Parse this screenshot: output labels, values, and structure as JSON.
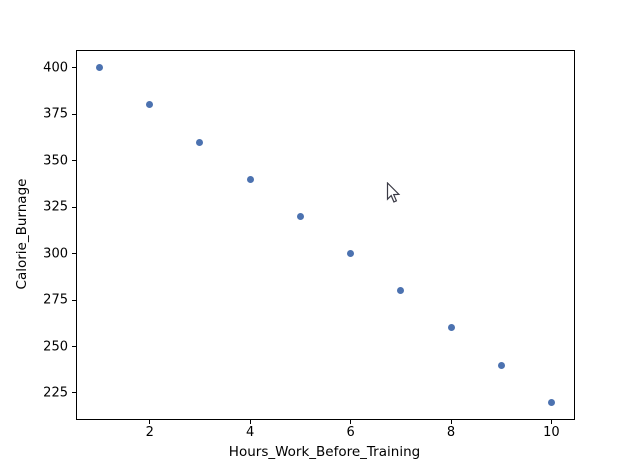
{
  "chart_data": {
    "type": "scatter",
    "title": "",
    "xlabel": "Hours_Work_Before_Training",
    "ylabel": "Calorie_Burnage",
    "x": [
      1,
      2,
      3,
      4,
      5,
      6,
      7,
      8,
      9,
      10
    ],
    "y": [
      400,
      380,
      360,
      340,
      320,
      300,
      280,
      260,
      240,
      220
    ],
    "x_ticks": [
      2,
      4,
      6,
      8,
      10
    ],
    "y_ticks": [
      225,
      250,
      275,
      300,
      325,
      350,
      375,
      400
    ],
    "xlim": [
      0.55,
      10.45
    ],
    "ylim": [
      211,
      409
    ],
    "grid": false,
    "legend_position": "none",
    "marker_color": "#4C72B0",
    "marker_diameter_px": 7,
    "spine_color": "#000000",
    "background_color": "#ffffff"
  },
  "icons": {
    "cursor": "mouse-cursor"
  }
}
